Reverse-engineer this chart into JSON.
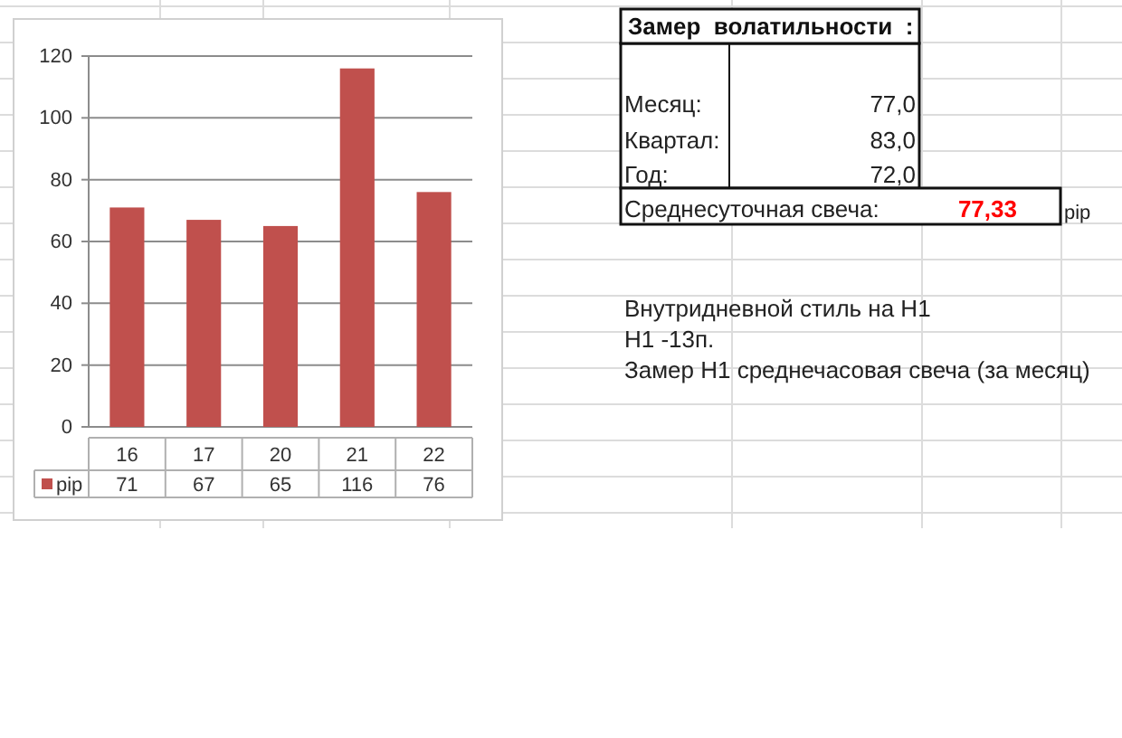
{
  "chart_data": [
    {
      "type": "bar",
      "categories": [
        "16",
        "17",
        "20",
        "21",
        "22"
      ],
      "series": [
        {
          "name": "pip",
          "color": "#c0504d",
          "values": [
            71,
            67,
            65,
            116,
            76
          ]
        }
      ],
      "ylim": [
        0,
        120
      ],
      "yticks": [
        0,
        20,
        40,
        60,
        80,
        100,
        120
      ],
      "grid": "y",
      "legend": "bottom left",
      "data_labels": true
    },
    {
      "type": "other",
      "title": "Замер  волатильности  :",
      "annotations": [
        "Месяц:",
        "77,0",
        "Квартал:",
        "83,0",
        "Год:",
        "72,0",
        "Среднесуточная свеча:",
        "77,33",
        "pip",
        "Внутридневной стиль на H1",
        "H1 -13п.",
        "Замер H1 среднечасовая свеча (за месяц)"
      ]
    }
  ]
}
